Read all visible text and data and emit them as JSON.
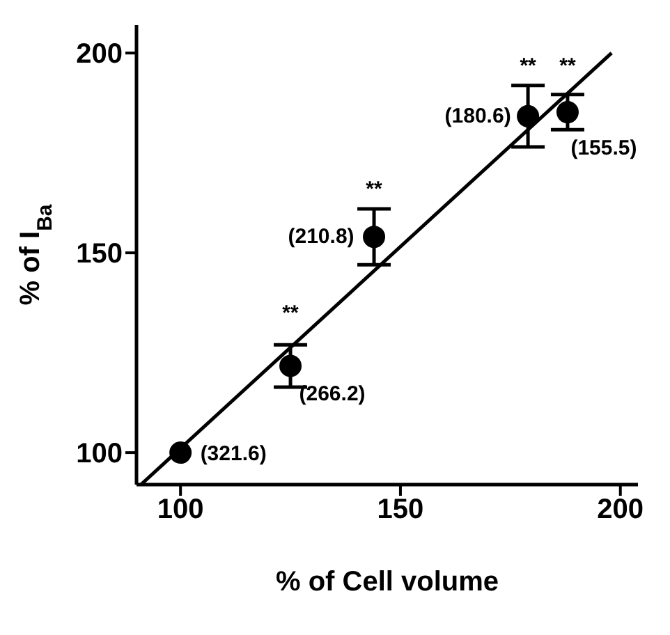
{
  "chart_data": {
    "type": "scatter",
    "xlabel": "% of  Cell volume",
    "ylabel": "% of I$_{Ba}$",
    "x": [
      100,
      125,
      144,
      179,
      188
    ],
    "series": [
      {
        "type": "scatter",
        "color": "#000000",
        "values": [
          100,
          121.7,
          154,
          184.2,
          185.2
        ],
        "errors": [
          null,
          5.3,
          7,
          7.7,
          4.4
        ],
        "marker": "circle"
      },
      {
        "type": "line",
        "color": "#000000",
        "x": [
          91,
          198
        ],
        "values": [
          92,
          200
        ],
        "marker": "none",
        "line_style": "solid"
      }
    ],
    "xlim": [
      90,
      204
    ],
    "ylim": [
      92,
      207
    ],
    "xticks": [
      100,
      150,
      200
    ],
    "yticks": [
      100,
      150,
      200
    ],
    "grid": false,
    "legend": false,
    "annotations": [
      "(321.6)",
      "**",
      "(266.2)",
      "**",
      "(210.8)",
      "**",
      "(180.6)",
      "**",
      "(155.5)"
    ]
  }
}
